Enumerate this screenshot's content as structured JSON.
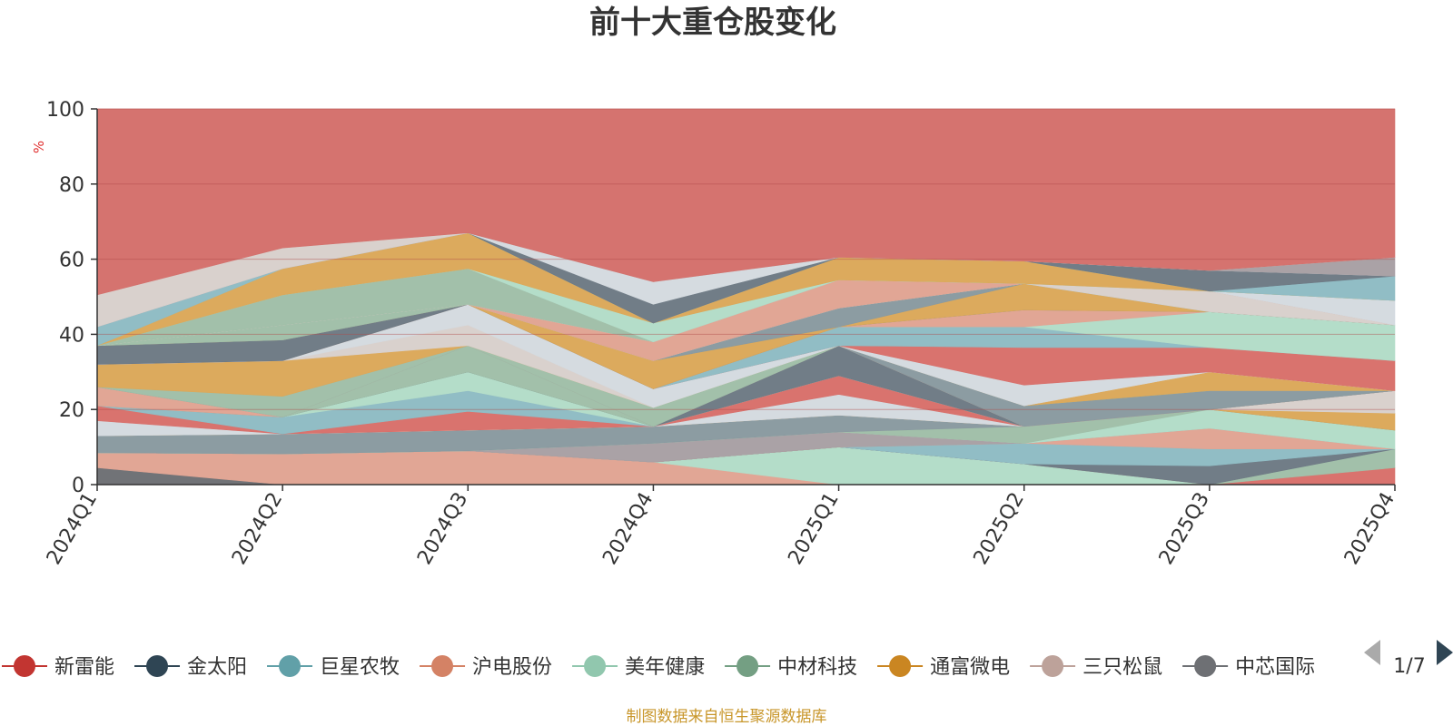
{
  "chart_data": {
    "type": "area",
    "title": "前十大重仓股变化",
    "ylabel": "%",
    "ylim": [
      0,
      100
    ],
    "yticks": [
      "0",
      "20",
      "40",
      "60",
      "80",
      "100"
    ],
    "categories": [
      "2024Q1",
      "2024Q2",
      "2024Q3",
      "2024Q4",
      "2025Q1",
      "2025Q2",
      "2025Q3",
      "2025Q4"
    ],
    "bands": [
      {
        "color": "#6e7074",
        "upper": [
          4.5,
          0,
          0,
          0,
          0,
          0,
          0,
          0
        ]
      },
      {
        "color": "#e0a493",
        "upper": [
          8.5,
          8.2,
          9,
          6,
          0,
          0,
          0,
          0
        ]
      },
      {
        "color": "#b3dcc8",
        "upper": [
          8.5,
          8.2,
          9,
          6,
          10,
          5.5,
          0,
          0
        ]
      },
      {
        "color": "#8fbcc4",
        "upper": [
          8.5,
          8.2,
          9,
          6,
          10,
          5.5,
          0,
          0
        ]
      },
      {
        "color": "#d8706b",
        "upper": [
          8.5,
          8.2,
          9,
          6,
          10,
          5.5,
          0,
          4.5
        ]
      },
      {
        "color": "#a0bfa8",
        "upper": [
          8.5,
          8.2,
          9,
          6,
          10,
          5.5,
          0,
          9.5
        ]
      },
      {
        "color": "#6e7a85",
        "upper": [
          8.5,
          8.2,
          9,
          6,
          10,
          5.5,
          5,
          9.5
        ]
      },
      {
        "color": "#8fbcc4",
        "upper": [
          8.5,
          8.2,
          9,
          6,
          10,
          11,
          9.5,
          9.5
        ]
      },
      {
        "color": "#e0a493",
        "upper": [
          8.5,
          8.2,
          9,
          6,
          10,
          11,
          15,
          9.5
        ]
      },
      {
        "color": "#a8a0a4",
        "upper": [
          8.5,
          8.2,
          9,
          11,
          14,
          11,
          15,
          9.5
        ]
      },
      {
        "color": "#b3dcc8",
        "upper": [
          8.5,
          8.2,
          9,
          11,
          14,
          11,
          20,
          14.5
        ]
      },
      {
        "color": "#a0bfa8",
        "upper": [
          8.5,
          8.2,
          9,
          11,
          14,
          15.5,
          20,
          14.5
        ]
      },
      {
        "color": "#8a9aa0",
        "upper": [
          13,
          13.5,
          14.5,
          15.5,
          18.5,
          15.5,
          20,
          14.5
        ]
      },
      {
        "color": "#dba85a",
        "upper": [
          13,
          13.5,
          14.5,
          15.5,
          18.5,
          15.5,
          20,
          19
        ]
      },
      {
        "color": "#d8d0cc",
        "upper": [
          13,
          13.5,
          14.5,
          15.5,
          18.5,
          15.5,
          20,
          25
        ]
      },
      {
        "color": "#d4dadf",
        "upper": [
          17,
          13.5,
          14.5,
          15.5,
          24,
          15.5,
          20,
          25
        ]
      },
      {
        "color": "#d8706b",
        "upper": [
          21,
          13.5,
          19.5,
          15.5,
          29,
          15.5,
          20,
          25
        ]
      },
      {
        "color": "#8fbcc4",
        "upper": [
          21,
          18,
          25,
          15.5,
          29,
          15.5,
          20,
          25
        ]
      },
      {
        "color": "#b3dcc8",
        "upper": [
          21,
          18,
          30,
          15.5,
          29,
          15.5,
          20,
          25
        ]
      },
      {
        "color": "#6e7a85",
        "upper": [
          21,
          18,
          30,
          15.5,
          37,
          15.5,
          20,
          25
        ]
      },
      {
        "color": "#a0bfa8",
        "upper": [
          21,
          18,
          37,
          15.5,
          37,
          15.5,
          20,
          25
        ]
      },
      {
        "color": "#e0a493",
        "upper": [
          26,
          18,
          37,
          15.5,
          37,
          15.5,
          20,
          25
        ]
      },
      {
        "color": "#8a9aa0",
        "upper": [
          26,
          18,
          37,
          15.5,
          37,
          21,
          25,
          25
        ]
      },
      {
        "color": "#a0bfa8",
        "upper": [
          26,
          23.5,
          37,
          20.5,
          37,
          21,
          25,
          25
        ]
      },
      {
        "color": "#dba85a",
        "upper": [
          32,
          33,
          37,
          20.5,
          37,
          21,
          30,
          25
        ]
      },
      {
        "color": "#d8d0cc",
        "upper": [
          32,
          33,
          42.5,
          20.5,
          37,
          21,
          30,
          25
        ]
      },
      {
        "color": "#d4dadf",
        "upper": [
          32,
          33,
          48,
          25.5,
          37,
          26.5,
          30,
          25
        ]
      },
      {
        "color": "#d8706b",
        "upper": [
          32,
          33,
          48,
          25.5,
          37,
          36.5,
          36.5,
          33
        ]
      },
      {
        "color": "#8fbcc4",
        "upper": [
          32,
          33,
          48,
          25.5,
          42,
          42,
          36.5,
          33
        ]
      },
      {
        "color": "#b3dcc8",
        "upper": [
          32,
          33,
          48,
          25.5,
          42,
          42,
          46,
          42.5
        ]
      },
      {
        "color": "#e0a493",
        "upper": [
          32,
          33,
          48,
          25.5,
          42,
          46.5,
          46,
          42.5
        ]
      },
      {
        "color": "#d8d0cc",
        "upper": [
          32,
          33,
          48,
          25.5,
          42,
          46.5,
          46,
          42.5
        ]
      },
      {
        "color": "#6e7a85",
        "upper": [
          37,
          38.5,
          48,
          25.5,
          42,
          46.5,
          46,
          42.5
        ]
      },
      {
        "color": "#dba85a",
        "upper": [
          37,
          38.5,
          48,
          33,
          42,
          53.5,
          46,
          42.5
        ]
      },
      {
        "color": "#8a9aa0",
        "upper": [
          37,
          38.5,
          48,
          33,
          47,
          53.5,
          46,
          42.5
        ]
      },
      {
        "color": "#a0bfa8",
        "upper": [
          37,
          42.5,
          48,
          33,
          47,
          53.5,
          46,
          42.5
        ]
      },
      {
        "color": "#d8d0cc",
        "upper": [
          37,
          42.5,
          48,
          33,
          47,
          53.5,
          51.5,
          42.5
        ]
      },
      {
        "color": "#e0a493",
        "upper": [
          37,
          42.5,
          48,
          38,
          54.5,
          53.5,
          51.5,
          42.5
        ]
      },
      {
        "color": "#d4dadf",
        "upper": [
          37,
          42.5,
          48,
          38,
          54.5,
          53.5,
          51.5,
          49
        ]
      },
      {
        "color": "#a0bfa8",
        "upper": [
          37,
          50.5,
          57.5,
          38,
          54.5,
          53.5,
          51.5,
          49
        ]
      },
      {
        "color": "#b3dcc8",
        "upper": [
          37,
          50.5,
          57.5,
          43,
          54.5,
          53.5,
          51.5,
          49
        ]
      },
      {
        "color": "#dba85a",
        "upper": [
          37,
          57.5,
          67,
          43,
          60.5,
          59.5,
          51.5,
          49
        ]
      },
      {
        "color": "#8fbcc4",
        "upper": [
          42,
          57.5,
          67,
          43,
          60.5,
          59.5,
          51.5,
          55.5
        ]
      },
      {
        "color": "#6e7a85",
        "upper": [
          42,
          57.5,
          67,
          48,
          60.5,
          59.5,
          57,
          55.5
        ]
      },
      {
        "color": "#d4dadf",
        "upper": [
          42,
          57.5,
          67,
          54,
          60.5,
          59.5,
          57,
          55.5
        ]
      },
      {
        "color": "#a8a0a4",
        "upper": [
          42,
          57.5,
          67,
          54,
          60.5,
          59.5,
          57,
          60.5
        ]
      },
      {
        "color": "#d8d0cc",
        "upper": [
          50.5,
          63,
          67,
          54,
          60.5,
          59.5,
          57,
          60.5
        ]
      },
      {
        "color": "#d4706c",
        "upper": [
          100,
          100,
          100,
          100,
          100,
          100,
          100,
          100
        ]
      }
    ]
  },
  "legend": {
    "items": [
      {
        "label": "新雷能",
        "color": "#c23531"
      },
      {
        "label": "金太阳",
        "color": "#2f4554"
      },
      {
        "label": "巨星农牧",
        "color": "#61a0a8"
      },
      {
        "label": "沪电股份",
        "color": "#d48265"
      },
      {
        "label": "美年健康",
        "color": "#91c7ae"
      },
      {
        "label": "中材科技",
        "color": "#749f83"
      },
      {
        "label": "通富微电",
        "color": "#ca8622"
      },
      {
        "label": "三只松鼠",
        "color": "#bda29a"
      },
      {
        "label": "中芯国际",
        "color": "#6e7074"
      }
    ],
    "page": "1/7"
  },
  "source": "制图数据来自恒生聚源数据库",
  "colors": {
    "title": "#333333",
    "unit": "#e03030",
    "source": "#c8962a",
    "pager_disabled": "#aaaaaa",
    "pager_active": "#2f4554"
  }
}
